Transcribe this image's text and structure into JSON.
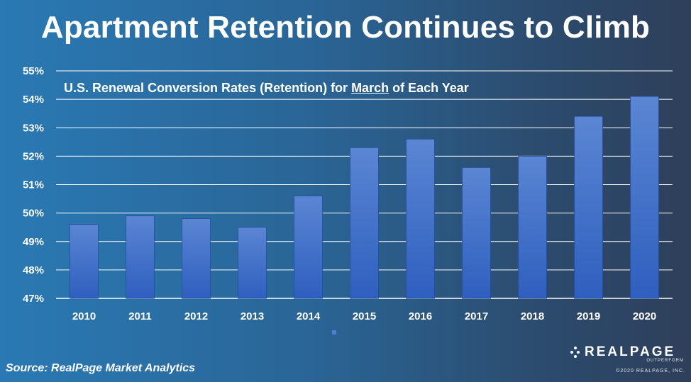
{
  "title": "Apartment Retention Continues to Climb",
  "subtitle": {
    "pre": "U.S. Renewal Conversion Rates (Retention) for ",
    "underlined": "March",
    "post": " of Each Year"
  },
  "source": "Source: RealPage Market Analytics",
  "brand": {
    "name": "REALPAGE",
    "tagline": "OUTPERFORM",
    "copyright": "©2020 REALPAGE, INC."
  },
  "chart_data": {
    "type": "bar",
    "title": "Apartment Retention Continues to Climb",
    "subtitle": "U.S. Renewal Conversion Rates (Retention) for March of Each Year",
    "xlabel": "",
    "ylabel": "",
    "categories": [
      "2010",
      "2011",
      "2012",
      "2013",
      "2014",
      "2015",
      "2016",
      "2017",
      "2018",
      "2019",
      "2020"
    ],
    "series": [
      {
        "values": [
          49.6,
          49.9,
          49.8,
          49.5,
          50.6,
          52.3,
          52.6,
          51.6,
          52.0,
          53.4,
          54.1
        ]
      }
    ],
    "ylim": [
      47,
      55
    ],
    "yticks": [
      47,
      48,
      49,
      50,
      51,
      52,
      53,
      54,
      55
    ],
    "ytick_labels": [
      "47%",
      "48%",
      "49%",
      "50%",
      "51%",
      "52%",
      "53%",
      "54%",
      "55%"
    ],
    "grid": true,
    "legend": "bottom-center",
    "colors": {
      "bar_top": "#5a86d3",
      "bar_bottom": "#2f5fbf",
      "grid": "#ffffff"
    }
  }
}
